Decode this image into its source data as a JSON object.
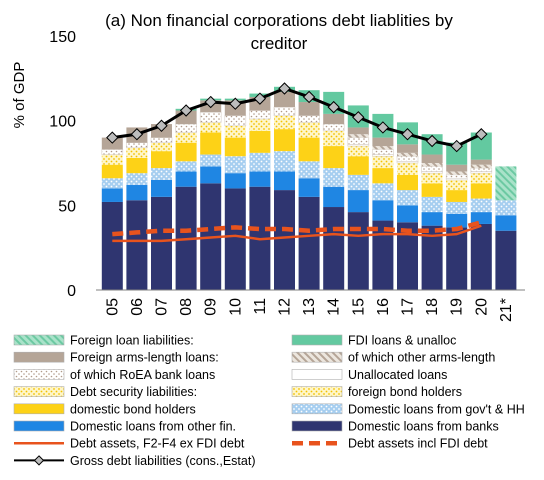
{
  "chart_data": {
    "type": "bar",
    "title_line1": "(a) Non financial corporations debt liablities by",
    "title_line2": "creditor",
    "ylabel": "% of GDP",
    "ylim": [
      0,
      150
    ],
    "yticks": [
      "0",
      "50",
      "100",
      "150"
    ],
    "ytick_values": [
      0,
      50,
      100,
      150
    ],
    "categories": [
      "05",
      "06",
      "07",
      "08",
      "09",
      "10",
      "11",
      "12",
      "13",
      "14",
      "15",
      "16",
      "17",
      "18",
      "19",
      "20",
      "21*"
    ],
    "stack_series": [
      {
        "key": "banks",
        "name": "Domestic loans from banks",
        "color": "#2f3570",
        "pattern": "solid",
        "values": [
          52,
          53,
          55,
          61,
          63,
          60,
          61,
          59,
          55,
          49,
          46,
          41,
          40,
          38,
          37,
          39,
          35
        ]
      },
      {
        "key": "otherfin",
        "name": "Domestic loans from other fin.",
        "color": "#1f86e3",
        "pattern": "solid",
        "values": [
          8,
          9,
          10,
          9,
          10,
          9,
          9,
          11,
          11,
          12,
          13,
          12,
          10,
          8,
          8,
          7,
          9
        ]
      },
      {
        "key": "govhh",
        "name": "Domestic loans from gov't & HH",
        "color": "#a6cef0",
        "pattern": "dots-blue",
        "values": [
          6,
          7,
          7,
          6,
          7,
          10,
          11,
          12,
          10,
          11,
          9,
          10,
          9,
          9,
          7,
          8,
          9
        ]
      },
      {
        "key": "domestic",
        "name": "domestic bond holders",
        "color": "#fdd217",
        "pattern": "solid",
        "values": [
          8,
          9,
          10,
          11,
          13,
          11,
          13,
          13,
          14,
          13,
          11,
          9,
          9,
          8,
          7,
          9,
          0
        ]
      },
      {
        "key": "foreignbond",
        "name": "foreign bond holders",
        "color": "#fff3b0",
        "pattern": "dots-yellow",
        "values": [
          6,
          6,
          5,
          6,
          6,
          7,
          7,
          8,
          9,
          9,
          6,
          7,
          7,
          6,
          6,
          6,
          0
        ]
      },
      {
        "key": "unalloc",
        "name": "Unallocated loans",
        "color": "#ffffff",
        "pattern": "solid",
        "values": [
          0,
          0,
          0,
          0,
          0,
          0,
          0,
          0,
          0,
          0,
          1,
          1,
          1,
          1,
          1,
          1,
          0
        ]
      },
      {
        "key": "roea",
        "name": "of which RoEA bank loans",
        "color": "#ffffff",
        "pattern": "dots-brown",
        "values": [
          3,
          3,
          3,
          5,
          6,
          6,
          5,
          5,
          4,
          4,
          4,
          3,
          3,
          3,
          2,
          2,
          0
        ]
      },
      {
        "key": "armsother",
        "name": "of which other arms-length",
        "color": "#e8e0d6",
        "pattern": "hatch-brown",
        "values": [
          0,
          0,
          0,
          0,
          0,
          0,
          0,
          0,
          0,
          0,
          2,
          2,
          2,
          2,
          2,
          2,
          0
        ]
      },
      {
        "key": "arms",
        "name": "Foreign arms-length loans:",
        "color": "#b5a597",
        "pattern": "solid",
        "values": [
          7,
          9,
          8,
          8,
          7,
          9,
          8,
          9,
          8,
          6,
          4,
          5,
          5,
          5,
          4,
          3,
          0
        ]
      },
      {
        "key": "fdi",
        "name": "FDI loans & unalloc",
        "color": "#63c9a0",
        "pattern": "solid",
        "values": [
          0,
          0,
          0,
          1,
          1,
          1,
          2,
          3,
          7,
          13,
          13,
          14,
          13,
          12,
          13,
          16,
          0
        ]
      },
      {
        "key": "foreigntotal",
        "name": "Foreign loan liabilities:",
        "color": "#7fd2b0",
        "pattern": "hatch-green",
        "values": [
          0,
          0,
          0,
          0,
          0,
          0,
          0,
          0,
          0,
          0,
          0,
          0,
          0,
          0,
          0,
          0,
          20
        ]
      }
    ],
    "line_series": [
      {
        "key": "gross",
        "name": "Gross debt liabilities (cons.,Estat)",
        "color": "#000000",
        "marker": "diamond",
        "values": [
          90,
          92,
          97,
          106,
          111,
          110,
          113,
          119,
          114,
          108,
          102,
          96,
          92,
          88,
          85,
          92
        ]
      },
      {
        "key": "debtfdi",
        "name": "Debt assets incl FDI debt",
        "color": "#e8531d",
        "style": "dashed",
        "values": [
          33,
          34,
          35,
          35,
          36,
          37,
          36,
          36,
          35,
          36,
          36,
          36,
          35,
          35,
          36,
          40
        ]
      },
      {
        "key": "debtassets",
        "name": "Debt assets, F2-F4 ex FDI debt",
        "color": "#e8531d",
        "style": "solid",
        "values": [
          29,
          29,
          29,
          30,
          31,
          32,
          30,
          31,
          32,
          33,
          32,
          33,
          33,
          32,
          33,
          38
        ]
      }
    ],
    "legend": [
      {
        "key": "foreigntotal",
        "label": "Foreign loan liabilities:",
        "kind": "hatch-green",
        "col": 0,
        "row": 0
      },
      {
        "key": "fdi",
        "label": "FDI loans & unalloc",
        "kind": "fill",
        "color": "#63c9a0",
        "col": 1,
        "row": 0
      },
      {
        "key": "arms",
        "label": "Foreign arms-length loans:",
        "kind": "fill",
        "color": "#b5a597",
        "col": 0,
        "row": 1
      },
      {
        "key": "armsother",
        "label": "of which other arms-length",
        "kind": "hatch-brown",
        "col": 1,
        "row": 1
      },
      {
        "key": "roea",
        "label": "of which RoEA bank loans",
        "kind": "dots-brown",
        "col": 0,
        "row": 2
      },
      {
        "key": "unalloc",
        "label": "Unallocated loans",
        "kind": "fill",
        "color": "#ffffff",
        "col": 1,
        "row": 2
      },
      {
        "key": "debtsec",
        "label": "Debt security liabilities:",
        "kind": "dots-yellow",
        "col": 0,
        "row": 3
      },
      {
        "key": "foreignbond",
        "label": "foreign bond holders",
        "kind": "dots-yellow",
        "col": 1,
        "row": 3
      },
      {
        "key": "domestic",
        "label": "domestic bond holders",
        "kind": "fill",
        "color": "#fdd217",
        "col": 0,
        "row": 4
      },
      {
        "key": "govhh",
        "label": "Domestic loans from gov't & HH",
        "kind": "dots-blue",
        "col": 1,
        "row": 4
      },
      {
        "key": "otherfin",
        "label": "Domestic loans from other fin.",
        "kind": "fill",
        "color": "#1f86e3",
        "col": 0,
        "row": 5
      },
      {
        "key": "banks",
        "label": "Domestic loans from banks",
        "kind": "fill",
        "color": "#2f3570",
        "col": 1,
        "row": 5
      },
      {
        "key": "debtassets",
        "label": "Debt assets, F2-F4 ex FDI debt",
        "kind": "line-solid",
        "color": "#e8531d",
        "col": 0,
        "row": 6
      },
      {
        "key": "debtfdi",
        "label": "Debt assets incl FDI debt",
        "kind": "line-dashed",
        "color": "#e8531d",
        "col": 1,
        "row": 6
      },
      {
        "key": "gross",
        "label": "Gross debt liabilities (cons.,Estat)",
        "kind": "line-diamond",
        "color": "#000000",
        "col": 0,
        "row": 7
      }
    ]
  }
}
